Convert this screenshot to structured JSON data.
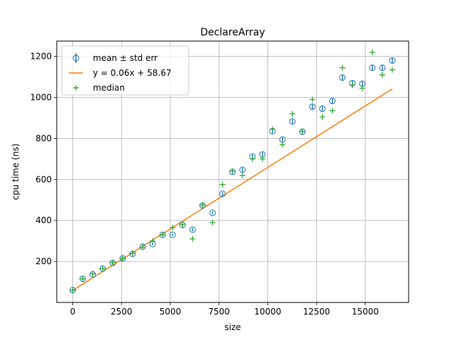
{
  "chart_data": {
    "type": "scatter",
    "title": "DeclareArray",
    "xlabel": "size",
    "ylabel": "cpu time (ns)",
    "xlim": [
      -820,
      17220
    ],
    "ylim": [
      0,
      1275
    ],
    "xticks": [
      0,
      2500,
      5000,
      7500,
      10000,
      12500,
      15000
    ],
    "xtick_labels": [
      "0",
      "2500",
      "5000",
      "7500",
      "10000",
      "12500",
      "15000"
    ],
    "yticks": [
      200,
      400,
      600,
      800,
      1000,
      1200
    ],
    "ytick_labels": [
      "200",
      "400",
      "600",
      "800",
      "1000",
      "1200"
    ],
    "grid": true,
    "legend_position": "top-left",
    "legend": [
      {
        "label": "mean ± std err",
        "marker": "circle-errorbar"
      },
      {
        "label": "y = 0.06x + 58.67",
        "marker": "line"
      },
      {
        "label": "median",
        "marker": "plus"
      }
    ],
    "colors": {
      "mean": "#1f77b4",
      "fit": "#ff7f0e",
      "median": "#2ca02c",
      "grid": "#b0b0b0"
    },
    "x": [
      0,
      512,
      1024,
      1536,
      2048,
      2560,
      3072,
      3584,
      4096,
      4608,
      5120,
      5632,
      6144,
      6656,
      7168,
      7680,
      8192,
      8704,
      9216,
      9728,
      10240,
      10752,
      11264,
      11776,
      12288,
      12800,
      13312,
      13824,
      14336,
      14848,
      15360,
      15872,
      16384
    ],
    "series": [
      {
        "key": "mean",
        "type": "errorbar",
        "values": [
          60,
          115,
          137,
          165,
          193,
          215,
          237,
          272,
          285,
          330,
          330,
          378,
          355,
          473,
          437,
          530,
          637,
          647,
          712,
          722,
          835,
          795,
          883,
          833,
          955,
          945,
          983,
          1097,
          1070,
          1067,
          1145,
          1145,
          1180
        ],
        "errors": [
          5,
          5,
          5,
          5,
          5,
          5,
          5,
          6,
          6,
          6,
          6,
          8,
          8,
          8,
          8,
          8,
          10,
          10,
          10,
          10,
          10,
          10,
          10,
          10,
          12,
          12,
          12,
          12,
          12,
          12,
          15,
          15,
          15
        ]
      },
      {
        "key": "fit",
        "type": "line",
        "slope": 0.06,
        "intercept": 58.67,
        "x": [
          0,
          16384
        ]
      },
      {
        "key": "median",
        "type": "scatter",
        "values": [
          60,
          115,
          140,
          165,
          195,
          215,
          240,
          270,
          300,
          330,
          365,
          380,
          310,
          475,
          390,
          575,
          640,
          620,
          700,
          700,
          845,
          770,
          920,
          835,
          990,
          905,
          935,
          1145,
          1060,
          1045,
          1220,
          1110,
          1135
        ]
      }
    ]
  }
}
